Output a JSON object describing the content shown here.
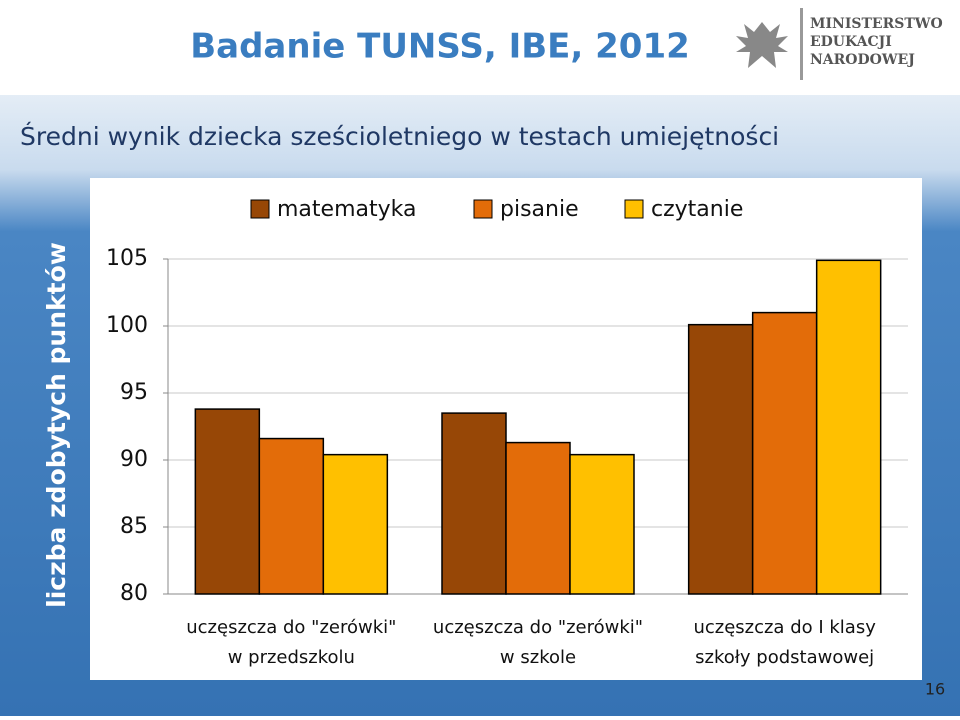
{
  "header": {
    "title": "Badanie TUNSS, IBE, 2012",
    "logo": [
      "MINISTERSTWO",
      "EDUKACJI",
      "NARODOWEJ"
    ]
  },
  "slide_number": "16",
  "chart_data": {
    "type": "bar",
    "title": "Średni wynik dziecka sześcioletniego w testach umiejętności",
    "y_label": "liczba zdobytych punktów",
    "categories": [
      [
        "uczęszcza do \"zerówki\"",
        "w przedszkolu"
      ],
      [
        "uczęszcza do \"zerówki\"",
        "w szkole"
      ],
      [
        "uczęszcza do I klasy",
        "szkoły podstawowej"
      ]
    ],
    "series": [
      {
        "name": "matematyka",
        "color": "#974706",
        "values": [
          93.8,
          93.5,
          100.1
        ]
      },
      {
        "name": "pisanie",
        "color": "#e36c09",
        "values": [
          91.6,
          91.3,
          101.0
        ]
      },
      {
        "name": "czytanie",
        "color": "#ffc000",
        "values": [
          90.4,
          90.4,
          104.9
        ]
      }
    ],
    "ylim": [
      80,
      105
    ],
    "yticks": [
      80,
      85,
      90,
      95,
      100,
      105
    ],
    "grid": true,
    "legend": "top"
  }
}
